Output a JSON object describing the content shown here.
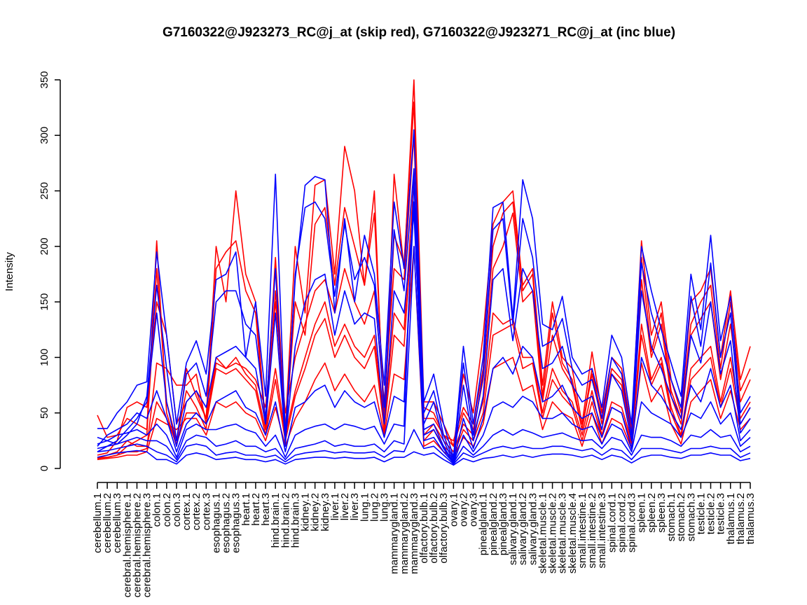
{
  "chart_data": {
    "type": "line",
    "title": "G7160322@J923273_RC@j_at (skip red), G7160322@J923271_RC@j_at (inc blue)",
    "xlabel": "",
    "ylabel": "Intensity",
    "ylim": [
      0,
      350
    ],
    "yticks": [
      0,
      50,
      100,
      150,
      200,
      250,
      300,
      350
    ],
    "grid": false,
    "legend": "none",
    "colors": {
      "skip": "#ff0000",
      "inc": "#0000ff"
    },
    "categories": [
      "cerebellum.1",
      "cerebellum.2",
      "cerebellum.3",
      "cerebral.hemisphere.1",
      "cerebral.hemisphere.2",
      "cerebral.hemisphere.3",
      "colon.1",
      "colon.2",
      "colon.3",
      "cortex.1",
      "cortex.2",
      "cortex.3",
      "esophagus.1",
      "esophagus.2",
      "esophagus.3",
      "heart.1",
      "heart.2",
      "heart.3",
      "hind.brain.1",
      "hind.brain.2",
      "hind.brain.3",
      "kidney.1",
      "kidney.2",
      "kidney.3",
      "liver.1",
      "liver.2",
      "liver.3",
      "lung.1",
      "lung.2",
      "lung.3",
      "mammarygland.1",
      "mammarygland.2",
      "mammarygland.3",
      "olfactory.bulb.1",
      "olfactory.bulb.2",
      "olfactory.bulb.3",
      "ovary.1",
      "ovary.2",
      "ovary.3",
      "pinealgland.1",
      "pinealgland.2",
      "pinealgland.3",
      "salivary.gland.1",
      "salivary.gland.2",
      "salivary.gland.3",
      "skeletal.muscle.1",
      "skeletal.muscle.2",
      "skeletal.muscle.3",
      "skeletal.muscle.4",
      "small.intestine.1",
      "small.intestine.2",
      "small.intestine.3",
      "spinal.cord.1",
      "spinal.cord.2",
      "spinal.cord.3",
      "spleen.1",
      "spleen.2",
      "spleen.3",
      "stomach.1",
      "stomach.2",
      "stomach.3",
      "testicle.1",
      "testicle.2",
      "testicle.3",
      "thalamus.1",
      "thalamus.2",
      "thalamus.3"
    ],
    "series_red": [
      [
        48,
        28,
        30,
        45,
        40,
        35,
        205,
        50,
        20,
        90,
        65,
        45,
        200,
        150,
        250,
        175,
        150,
        40,
        190,
        35,
        200,
        140,
        255,
        260,
        175,
        290,
        250,
        165,
        250,
        30,
        265,
        180,
        350,
        60,
        60,
        40,
        20,
        85,
        50,
        120,
        220,
        240,
        250,
        165,
        180,
        75,
        150,
        100,
        90,
        40,
        105,
        50,
        100,
        90,
        35,
        205,
        120,
        150,
        80,
        50,
        150,
        160,
        180,
        100,
        160,
        80,
        110
      ],
      [
        10,
        10,
        12,
        20,
        25,
        30,
        180,
        60,
        25,
        70,
        55,
        35,
        180,
        195,
        205,
        160,
        140,
        35,
        160,
        30,
        150,
        120,
        220,
        235,
        165,
        235,
        200,
        165,
        230,
        45,
        210,
        185,
        330,
        55,
        50,
        30,
        25,
        55,
        40,
        90,
        200,
        230,
        240,
        160,
        175,
        65,
        140,
        95,
        80,
        35,
        90,
        45,
        90,
        80,
        30,
        190,
        105,
        140,
        70,
        45,
        130,
        150,
        165,
        90,
        150,
        70,
        90
      ],
      [
        12,
        14,
        25,
        55,
        60,
        55,
        150,
        120,
        40,
        60,
        70,
        45,
        100,
        90,
        95,
        90,
        80,
        55,
        150,
        50,
        100,
        130,
        160,
        170,
        140,
        180,
        150,
        130,
        160,
        60,
        180,
        170,
        300,
        45,
        45,
        30,
        20,
        50,
        35,
        80,
        180,
        200,
        230,
        150,
        160,
        60,
        120,
        90,
        75,
        35,
        85,
        40,
        85,
        75,
        30,
        170,
        100,
        130,
        65,
        40,
        120,
        135,
        150,
        80,
        130,
        60,
        80
      ],
      [
        10,
        12,
        15,
        25,
        20,
        20,
        60,
        45,
        22,
        50,
        50,
        40,
        95,
        90,
        100,
        85,
        75,
        35,
        90,
        30,
        70,
        100,
        130,
        150,
        110,
        130,
        110,
        100,
        120,
        40,
        140,
        125,
        260,
        30,
        40,
        25,
        15,
        40,
        30,
        60,
        140,
        130,
        135,
        100,
        100,
        50,
        90,
        70,
        60,
        30,
        70,
        30,
        60,
        55,
        25,
        130,
        80,
        100,
        55,
        30,
        90,
        100,
        110,
        60,
        100,
        45,
        60
      ],
      [
        9,
        10,
        12,
        15,
        15,
        18,
        95,
        90,
        75,
        75,
        85,
        40,
        90,
        85,
        90,
        80,
        70,
        30,
        80,
        25,
        65,
        90,
        120,
        135,
        100,
        120,
        100,
        90,
        110,
        35,
        120,
        110,
        240,
        25,
        35,
        20,
        12,
        35,
        25,
        50,
        120,
        125,
        130,
        90,
        95,
        45,
        80,
        65,
        55,
        25,
        60,
        28,
        55,
        50,
        22,
        120,
        75,
        95,
        50,
        28,
        80,
        90,
        100,
        55,
        90,
        40,
        55
      ],
      [
        8,
        9,
        10,
        12,
        12,
        15,
        45,
        40,
        35,
        45,
        45,
        30,
        60,
        55,
        60,
        50,
        45,
        25,
        55,
        20,
        45,
        60,
        80,
        95,
        70,
        85,
        70,
        60,
        75,
        30,
        85,
        80,
        200,
        20,
        25,
        15,
        10,
        28,
        20,
        40,
        90,
        95,
        100,
        70,
        75,
        35,
        60,
        50,
        45,
        20,
        50,
        22,
        45,
        40,
        18,
        95,
        60,
        75,
        40,
        22,
        60,
        70,
        80,
        45,
        70,
        35,
        45
      ]
    ],
    "series_blue": [
      [
        36,
        36,
        50,
        60,
        75,
        78,
        195,
        120,
        40,
        95,
        115,
        85,
        170,
        175,
        195,
        100,
        150,
        65,
        265,
        30,
        170,
        255,
        263,
        260,
        140,
        225,
        150,
        210,
        175,
        75,
        240,
        180,
        305,
        60,
        85,
        40,
        10,
        110,
        40,
        100,
        235,
        240,
        135,
        260,
        225,
        130,
        125,
        155,
        100,
        85,
        90,
        55,
        120,
        100,
        40,
        200,
        160,
        125,
        95,
        65,
        175,
        125,
        210,
        115,
        155,
        50,
        65
      ],
      [
        28,
        25,
        22,
        30,
        40,
        65,
        165,
        90,
        25,
        85,
        95,
        65,
        150,
        160,
        160,
        130,
        120,
        45,
        180,
        20,
        175,
        235,
        240,
        225,
        155,
        220,
        170,
        190,
        165,
        55,
        215,
        160,
        270,
        50,
        70,
        30,
        8,
        95,
        30,
        85,
        215,
        225,
        130,
        225,
        190,
        110,
        115,
        135,
        90,
        75,
        80,
        45,
        100,
        85,
        30,
        185,
        140,
        110,
        80,
        55,
        155,
        110,
        185,
        100,
        140,
        40,
        55
      ],
      [
        15,
        20,
        25,
        35,
        45,
        60,
        140,
        60,
        20,
        60,
        70,
        55,
        100,
        105,
        110,
        100,
        90,
        40,
        140,
        25,
        110,
        150,
        170,
        175,
        120,
        160,
        130,
        140,
        135,
        40,
        160,
        140,
        230,
        40,
        60,
        25,
        6,
        75,
        25,
        65,
        170,
        180,
        115,
        180,
        160,
        90,
        95,
        110,
        75,
        60,
        65,
        35,
        85,
        70,
        25,
        160,
        110,
        90,
        65,
        45,
        120,
        95,
        150,
        85,
        115,
        32,
        45
      ],
      [
        20,
        30,
        35,
        40,
        50,
        45,
        70,
        45,
        15,
        40,
        50,
        40,
        60,
        65,
        70,
        55,
        50,
        30,
        60,
        15,
        55,
        60,
        70,
        75,
        55,
        70,
        60,
        55,
        60,
        28,
        65,
        60,
        240,
        35,
        40,
        20,
        5,
        45,
        18,
        45,
        90,
        100,
        85,
        110,
        100,
        60,
        65,
        75,
        55,
        45,
        50,
        28,
        55,
        50,
        18,
        100,
        75,
        65,
        50,
        35,
        75,
        60,
        90,
        55,
        75,
        25,
        35
      ],
      [
        22,
        25,
        30,
        32,
        35,
        30,
        40,
        30,
        10,
        35,
        40,
        35,
        35,
        38,
        40,
        35,
        32,
        20,
        30,
        10,
        30,
        35,
        38,
        40,
        35,
        40,
        38,
        35,
        38,
        22,
        40,
        38,
        260,
        30,
        35,
        18,
        5,
        30,
        15,
        30,
        55,
        60,
        55,
        65,
        60,
        45,
        45,
        50,
        40,
        35,
        38,
        22,
        40,
        35,
        15,
        60,
        50,
        45,
        40,
        28,
        50,
        45,
        60,
        40,
        50,
        20,
        28
      ],
      [
        18,
        20,
        22,
        25,
        28,
        25,
        25,
        20,
        8,
        25,
        30,
        28,
        20,
        22,
        25,
        20,
        20,
        15,
        18,
        8,
        18,
        20,
        22,
        25,
        20,
        22,
        20,
        20,
        22,
        15,
        25,
        22,
        200,
        25,
        28,
        15,
        5,
        20,
        12,
        20,
        30,
        35,
        30,
        35,
        32,
        28,
        30,
        32,
        28,
        25,
        26,
        18,
        28,
        25,
        12,
        30,
        28,
        28,
        25,
        20,
        30,
        28,
        35,
        28,
        30,
        15,
        20
      ],
      [
        15,
        16,
        18,
        20,
        22,
        20,
        15,
        12,
        6,
        20,
        22,
        20,
        12,
        14,
        15,
        12,
        12,
        10,
        12,
        6,
        12,
        14,
        15,
        16,
        14,
        15,
        14,
        14,
        15,
        10,
        16,
        15,
        35,
        18,
        20,
        12,
        4,
        14,
        10,
        14,
        18,
        20,
        18,
        20,
        18,
        18,
        20,
        20,
        18,
        16,
        18,
        12,
        18,
        16,
        8,
        18,
        18,
        18,
        16,
        14,
        18,
        18,
        20,
        18,
        18,
        10,
        14
      ],
      [
        10,
        12,
        14,
        15,
        16,
        15,
        8,
        8,
        4,
        12,
        14,
        12,
        8,
        9,
        10,
        8,
        8,
        6,
        8,
        4,
        8,
        9,
        10,
        10,
        9,
        10,
        9,
        9,
        10,
        6,
        10,
        10,
        15,
        12,
        14,
        8,
        3,
        9,
        6,
        9,
        10,
        12,
        10,
        12,
        10,
        12,
        13,
        13,
        12,
        10,
        12,
        8,
        12,
        10,
        5,
        10,
        12,
        12,
        10,
        9,
        12,
        12,
        14,
        12,
        12,
        7,
        9
      ]
    ]
  }
}
